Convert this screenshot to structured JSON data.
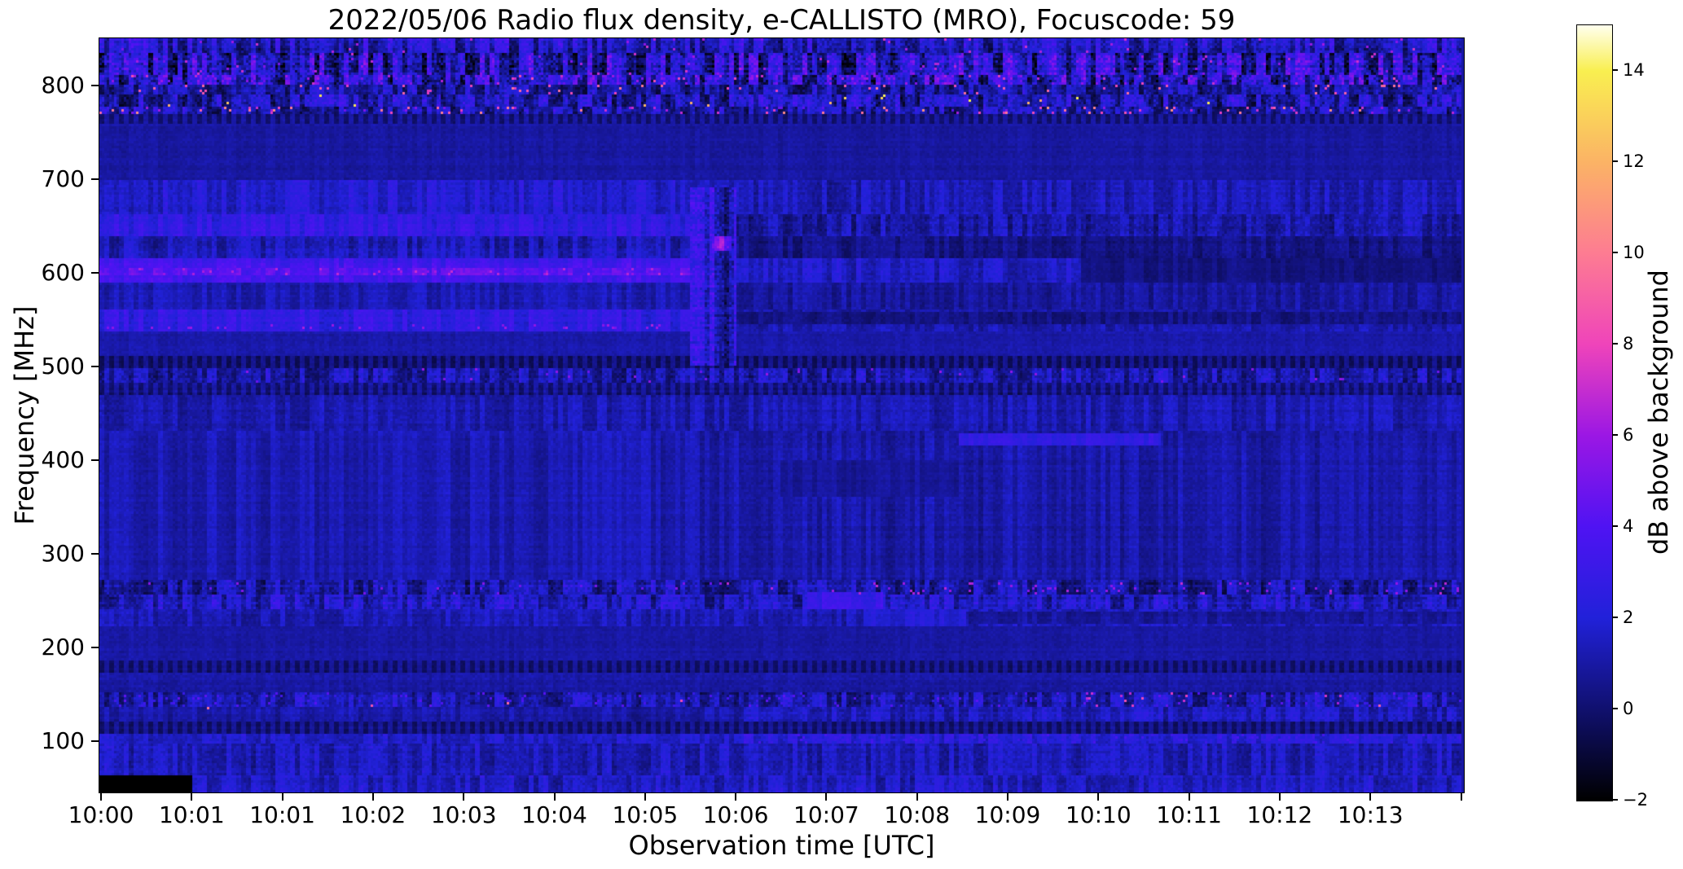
{
  "chart_data": {
    "type": "heatmap",
    "subtype": "radio-spectrogram",
    "title": "2022/05/06  Radio flux density, e-CALLISTO (MRO), Focuscode: 59",
    "xlabel": "Observation time [UTC]",
    "ylabel": "Frequency [MHz]",
    "x_ticks": [
      "10:00",
      "10:01",
      "10:01",
      "10:02",
      "10:03",
      "10:04",
      "10:05",
      "10:06",
      "10:07",
      "10:08",
      "10:09",
      "10:10",
      "10:11",
      "10:12",
      "10:13"
    ],
    "x_has_extra_unlabeled_tick": true,
    "y_ticks": [
      800,
      700,
      600,
      500,
      400,
      300,
      200,
      100
    ],
    "ylim": [
      45,
      850
    ],
    "grid": false,
    "legend": "none",
    "colorbar": {
      "label": "dB above background",
      "vmin": -2,
      "vmax": 15,
      "ticks": [
        {
          "v": 14,
          "label": "14"
        },
        {
          "v": 12,
          "label": "12"
        },
        {
          "v": 10,
          "label": "10"
        },
        {
          "v": 8,
          "label": "8"
        },
        {
          "v": 6,
          "label": "6"
        },
        {
          "v": 4,
          "label": "4"
        },
        {
          "v": 2,
          "label": "2"
        },
        {
          "v": 0,
          "label": "0"
        },
        {
          "v": -2,
          "label": "−2"
        }
      ],
      "colormap": "gnuplot2-like",
      "stops": [
        [
          -2,
          "#000000"
        ],
        [
          0,
          "#10106e"
        ],
        [
          2,
          "#2121d9"
        ],
        [
          4,
          "#4f13f3"
        ],
        [
          6,
          "#9b17e4"
        ],
        [
          8,
          "#ef44ba"
        ],
        [
          10,
          "#fd7c92"
        ],
        [
          12,
          "#fbb365"
        ],
        [
          14,
          "#f9ef50"
        ],
        [
          15,
          "#ffffee"
        ]
      ]
    },
    "transition_time_frac": 0.4376,
    "bands": [
      {
        "f": [
          45,
          850
        ],
        "t": [
          0,
          1
        ],
        "v": 1.0,
        "var": 0.55,
        "k": "s"
      },
      {
        "f": [
          835,
          850
        ],
        "t": [
          0,
          1
        ],
        "v": 1.6,
        "var": 1.7,
        "k": "s"
      },
      {
        "f": [
          812,
          835
        ],
        "t": [
          0,
          1
        ],
        "v": 1.8,
        "var": 2.7,
        "k": "s"
      },
      {
        "f": [
          800,
          812
        ],
        "t": [
          0,
          1
        ],
        "v": 2.3,
        "var": 2.8,
        "k": "s"
      },
      {
        "f": [
          790,
          800
        ],
        "t": [
          0,
          1
        ],
        "v": 1.2,
        "var": 1.5,
        "k": "s"
      },
      {
        "f": [
          778,
          790
        ],
        "t": [
          0,
          1
        ],
        "v": 1.5,
        "var": 1.9,
        "k": "s"
      },
      {
        "f": [
          768,
          778
        ],
        "t": [
          0,
          1
        ],
        "v": 1.1,
        "var": 1.7,
        "k": "s"
      },
      {
        "f": [
          758,
          768
        ],
        "t": [
          0,
          1
        ],
        "v": 1.0,
        "var": 0.8,
        "k": "d"
      },
      {
        "f": [
          700,
          758
        ],
        "t": [
          0,
          1
        ],
        "v": 0.9,
        "var": 0.5,
        "k": "f"
      },
      {
        "f": [
          660,
          700
        ],
        "t": [
          0,
          0.4376
        ],
        "v": 1.9,
        "var": 0.8,
        "k": "s"
      },
      {
        "f": [
          660,
          700
        ],
        "t": [
          0.4376,
          1
        ],
        "v": 1.3,
        "var": 0.8,
        "k": "s"
      },
      {
        "f": [
          640,
          662
        ],
        "t": [
          0,
          0.4376
        ],
        "v": 2.7,
        "var": 0.8,
        "k": "s"
      },
      {
        "f": [
          640,
          662
        ],
        "t": [
          0.4376,
          1
        ],
        "v": 1.1,
        "var": 1.0,
        "k": "s"
      },
      {
        "f": [
          615,
          640
        ],
        "t": [
          0,
          0.4376
        ],
        "v": 1.4,
        "var": 0.9,
        "k": "s"
      },
      {
        "f": [
          615,
          640
        ],
        "t": [
          0.4376,
          1
        ],
        "v": 0.4,
        "var": 0.6,
        "k": "s"
      },
      {
        "f": [
          588,
          615
        ],
        "t": [
          0,
          0.4376
        ],
        "v": 3.4,
        "var": 0.7,
        "k": "s"
      },
      {
        "f": [
          596,
          605
        ],
        "t": [
          0,
          0.4376
        ],
        "v": 4.3,
        "var": 0.9,
        "k": "s"
      },
      {
        "f": [
          588,
          615
        ],
        "t": [
          0.4376,
          1
        ],
        "v": 1.6,
        "var": 0.8,
        "k": "s"
      },
      {
        "f": [
          590,
          614
        ],
        "t": [
          0.72,
          1
        ],
        "v": 0.3,
        "var": 0.4,
        "k": "s"
      },
      {
        "f": [
          560,
          588
        ],
        "t": [
          0,
          0.4376
        ],
        "v": 1.3,
        "var": 0.6,
        "k": "s"
      },
      {
        "f": [
          560,
          588
        ],
        "t": [
          0.4376,
          1
        ],
        "v": 0.9,
        "var": 0.6,
        "k": "s"
      },
      {
        "f": [
          538,
          560
        ],
        "t": [
          0,
          0.4376
        ],
        "v": 2.6,
        "var": 0.8,
        "k": "s"
      },
      {
        "f": [
          545,
          558
        ],
        "t": [
          0.4376,
          1
        ],
        "v": 0.4,
        "var": 0.5,
        "k": "s"
      },
      {
        "f": [
          538,
          545
        ],
        "t": [
          0.4376,
          1
        ],
        "v": 1.2,
        "var": 0.6,
        "k": "s"
      },
      {
        "f": [
          510,
          538
        ],
        "t": [
          0,
          1
        ],
        "v": 1.1,
        "var": 0.5,
        "k": "f"
      },
      {
        "f": [
          498,
          510
        ],
        "t": [
          0,
          1
        ],
        "v": 0.8,
        "var": 0.8,
        "k": "d"
      },
      {
        "f": [
          482,
          498
        ],
        "t": [
          0,
          1
        ],
        "v": 1.2,
        "var": 1.3,
        "k": "s"
      },
      {
        "f": [
          468,
          482
        ],
        "t": [
          0,
          1
        ],
        "v": 0.9,
        "var": 1.0,
        "k": "d"
      },
      {
        "f": [
          430,
          468
        ],
        "t": [
          0,
          1
        ],
        "v": 1.2,
        "var": 0.7,
        "k": "s"
      },
      {
        "f": [
          270,
          430
        ],
        "t": [
          0,
          0.4376
        ],
        "v": 1.25,
        "var": 0.55,
        "k": "s"
      },
      {
        "f": [
          270,
          430
        ],
        "t": [
          0.4376,
          1
        ],
        "v": 1.05,
        "var": 0.6,
        "k": "s"
      },
      {
        "f": [
          415,
          428
        ],
        "t": [
          0.63,
          0.78
        ],
        "v": 2.6,
        "var": 0.5,
        "k": "s"
      },
      {
        "f": [
          360,
          400
        ],
        "t": [
          0.5,
          0.63
        ],
        "v": 0.75,
        "var": 0.4,
        "k": "s"
      },
      {
        "f": [
          255,
          270
        ],
        "t": [
          0,
          1
        ],
        "v": 1.2,
        "var": 1.4,
        "k": "s"
      },
      {
        "f": [
          240,
          255
        ],
        "t": [
          0,
          1
        ],
        "v": 1.5,
        "var": 1.3,
        "k": "s"
      },
      {
        "f": [
          238,
          258
        ],
        "t": [
          0.52,
          0.575
        ],
        "v": 3.0,
        "var": 0.7,
        "k": "s"
      },
      {
        "f": [
          222,
          240
        ],
        "t": [
          0,
          1
        ],
        "v": 1.3,
        "var": 0.7,
        "k": "s"
      },
      {
        "f": [
          222,
          240
        ],
        "t": [
          0.56,
          0.635
        ],
        "v": 2.0,
        "var": 0.5,
        "k": "s"
      },
      {
        "f": [
          224,
          236
        ],
        "t": [
          0.635,
          1
        ],
        "v": 0.8,
        "var": 0.5,
        "k": "s"
      },
      {
        "f": [
          185,
          222
        ],
        "t": [
          0,
          1
        ],
        "v": 1.0,
        "var": 0.5,
        "k": "f"
      },
      {
        "f": [
          172,
          185
        ],
        "t": [
          0,
          1
        ],
        "v": 0.8,
        "var": 0.7,
        "k": "d"
      },
      {
        "f": [
          150,
          172
        ],
        "t": [
          0,
          1
        ],
        "v": 1.0,
        "var": 0.6,
        "k": "f"
      },
      {
        "f": [
          135,
          150
        ],
        "t": [
          0,
          1
        ],
        "v": 1.1,
        "var": 1.3,
        "k": "s"
      },
      {
        "f": [
          120,
          135
        ],
        "t": [
          0,
          0.47
        ],
        "v": 1.1,
        "var": 0.6,
        "k": "s"
      },
      {
        "f": [
          120,
          135
        ],
        "t": [
          0.47,
          1
        ],
        "v": 1.5,
        "var": 0.9,
        "k": "s"
      },
      {
        "f": [
          108,
          120
        ],
        "t": [
          0,
          1
        ],
        "v": 0.8,
        "var": 0.7,
        "k": "d"
      },
      {
        "f": [
          95,
          108
        ],
        "t": [
          0,
          0.47
        ],
        "v": 1.7,
        "var": 0.7,
        "k": "s"
      },
      {
        "f": [
          95,
          108
        ],
        "t": [
          0.47,
          1
        ],
        "v": 2.2,
        "var": 0.8,
        "k": "s"
      },
      {
        "f": [
          62,
          95
        ],
        "t": [
          0,
          1
        ],
        "v": 1.4,
        "var": 0.9,
        "k": "s"
      },
      {
        "f": [
          45,
          62
        ],
        "t": [
          0,
          1
        ],
        "v": 1.5,
        "var": 0.9,
        "k": "s"
      },
      {
        "f": [
          500,
          690
        ],
        "t": [
          0.433,
          0.468
        ],
        "v": 1.5,
        "var": 1.9,
        "k": "s"
      },
      {
        "f": [
          624,
          640
        ],
        "t": [
          0.449,
          0.464
        ],
        "v": 5.0,
        "var": 1.3,
        "k": "s"
      },
      {
        "f": [
          45,
          62
        ],
        "t": [
          0,
          0.068
        ],
        "v": -2,
        "var": 0,
        "k": "x"
      }
    ],
    "sparkles": [
      {
        "f": [
          812,
          850
        ],
        "t": [
          0,
          1
        ],
        "d": 0.012,
        "v": [
          5,
          7.5
        ]
      },
      {
        "f": [
          800,
          812
        ],
        "t": [
          0,
          1
        ],
        "d": 0.025,
        "v": [
          5,
          8.5
        ]
      },
      {
        "f": [
          790,
          800
        ],
        "t": [
          0,
          1
        ],
        "d": 0.03,
        "v": [
          7.5,
          10
        ]
      },
      {
        "f": [
          778,
          790
        ],
        "t": [
          0,
          1
        ],
        "d": 0.007,
        "v": [
          11,
          14.5
        ]
      },
      {
        "f": [
          768,
          778
        ],
        "t": [
          0,
          1
        ],
        "d": 0.06,
        "v": [
          4,
          11
        ]
      },
      {
        "f": [
          596,
          604
        ],
        "t": [
          0,
          0.4376
        ],
        "d": 0.06,
        "v": [
          5.5,
          7
        ]
      },
      {
        "f": [
          540,
          546
        ],
        "t": [
          0,
          0.4376
        ],
        "d": 0.05,
        "v": [
          5,
          6.5
        ]
      },
      {
        "f": [
          482,
          498
        ],
        "t": [
          0,
          1
        ],
        "d": 0.008,
        "v": [
          4.5,
          6
        ]
      },
      {
        "f": [
          255,
          268
        ],
        "t": [
          0.45,
          1
        ],
        "d": 0.035,
        "v": [
          5,
          7
        ]
      },
      {
        "f": [
          255,
          268
        ],
        "t": [
          0,
          0.45
        ],
        "d": 0.012,
        "v": [
          4.5,
          6
        ]
      },
      {
        "f": [
          135,
          150
        ],
        "t": [
          0,
          1
        ],
        "d": 0.05,
        "v": [
          2.5,
          4.5
        ]
      },
      {
        "f": [
          135,
          150
        ],
        "t": [
          0.7,
          0.95
        ],
        "d": 0.015,
        "v": [
          6,
          9
        ]
      },
      {
        "f": [
          128,
          142
        ],
        "t": [
          0.05,
          0.45
        ],
        "d": 0.005,
        "v": [
          8,
          10.5
        ]
      },
      {
        "f": [
          95,
          108
        ],
        "t": [
          0.47,
          1
        ],
        "d": 0.06,
        "v": [
          2.6,
          3.8
        ]
      }
    ]
  }
}
